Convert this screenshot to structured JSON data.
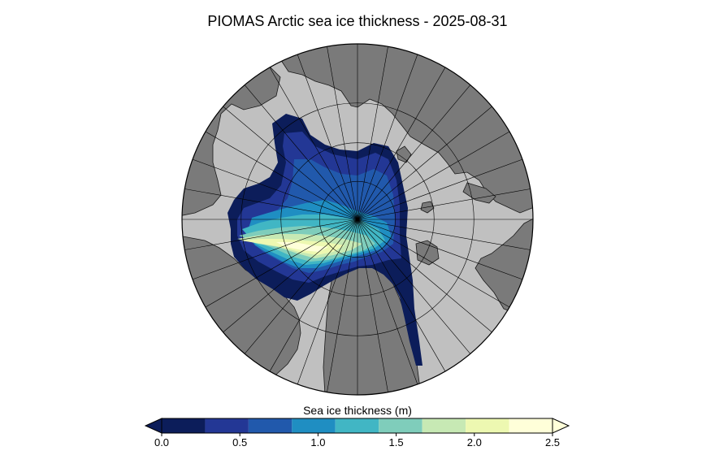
{
  "chart_data": {
    "type": "heatmap",
    "title": "PIOMAS Arctic sea ice thickness - 2025-08-31",
    "projection": "north-polar-stereographic",
    "colorbar": {
      "label": "Sea ice thickness (m)",
      "orientation": "horizontal",
      "range": [
        0,
        2.5
      ],
      "extend": "both",
      "ticks": [
        0.0,
        0.5,
        1.0,
        1.5,
        2.0,
        2.5
      ],
      "tick_labels": [
        "0.0",
        "0.5",
        "1.0",
        "1.5",
        "2.0",
        "2.5"
      ],
      "bins": [
        {
          "from": 0.0,
          "to": 0.2778,
          "color": "#0c1d5a"
        },
        {
          "from": 0.2778,
          "to": 0.5556,
          "color": "#233795"
        },
        {
          "from": 0.5556,
          "to": 0.8333,
          "color": "#2159ac"
        },
        {
          "from": 0.8333,
          "to": 1.1111,
          "color": "#1f8ec2"
        },
        {
          "from": 1.1111,
          "to": 1.3889,
          "color": "#41b6c4"
        },
        {
          "from": 1.3889,
          "to": 1.6667,
          "color": "#7fcdbb"
        },
        {
          "from": 1.6667,
          "to": 1.9444,
          "color": "#c7e9b4"
        },
        {
          "from": 1.9444,
          "to": 2.2222,
          "color": "#edf8b1"
        },
        {
          "from": 2.2222,
          "to": 2.5,
          "color": "#ffffd9"
        }
      ],
      "under_color": "#0c1d5a",
      "over_color": "#ffffd9"
    },
    "colors": {
      "land": "#7a7a7a",
      "open_ocean": "#c0c0c0",
      "graticule": "#000000"
    },
    "grid": true
  }
}
